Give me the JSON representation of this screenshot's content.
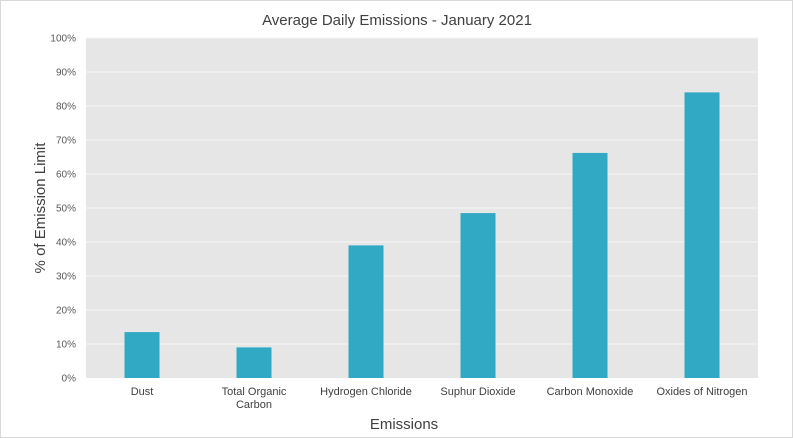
{
  "chart_data": {
    "type": "bar",
    "title": "Average Daily Emissions - January 2021",
    "xlabel": "Emissions",
    "ylabel": "% of Emission Limit",
    "categories": [
      [
        "Dust"
      ],
      [
        "Total Organic",
        "Carbon"
      ],
      [
        "Hydrogen Chloride"
      ],
      [
        "Suphur Dioxide"
      ],
      [
        "Carbon  Monoxide"
      ],
      [
        "Oxides of Nitrogen"
      ]
    ],
    "values": [
      13.5,
      9,
      39,
      48.5,
      66.2,
      84
    ],
    "ylim": [
      0,
      100
    ],
    "yticks": [
      "0%",
      "10%",
      "20%",
      "30%",
      "40%",
      "50%",
      "60%",
      "70%",
      "80%",
      "90%",
      "100%"
    ],
    "grid": true,
    "legend": "none",
    "colors": {
      "bar": "#31a8c4",
      "plot_background": "#e6e6e6",
      "gridline": "#f5f5f5"
    }
  }
}
